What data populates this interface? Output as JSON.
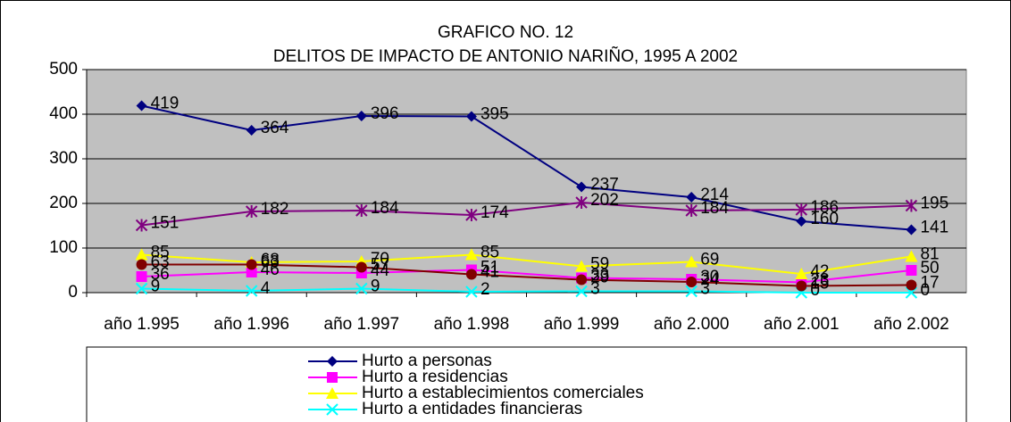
{
  "chart_data": {
    "type": "line",
    "title": "GRAFICO NO. 12",
    "subtitle": "DELITOS DE IMPACTO DE ANTONIO NARIÑO, 1995 A 2002",
    "categories": [
      "año 1.995",
      "año 1.996",
      "año 1.997",
      "año 1.998",
      "año 1.999",
      "año 2.000",
      "año 2.001",
      "año 2.002"
    ],
    "ylim": [
      0,
      500
    ],
    "yticks": [
      0,
      100,
      200,
      300,
      400,
      500
    ],
    "grid": true,
    "series": [
      {
        "name": "Hurto a personas",
        "color": "#000080",
        "marker": "diamond",
        "values": [
          419,
          364,
          396,
          395,
          237,
          214,
          160,
          141
        ]
      },
      {
        "name": "Hurto a residencias",
        "color": "#ff00ff",
        "marker": "square",
        "values": [
          36,
          46,
          44,
          51,
          33,
          30,
          23,
          50
        ]
      },
      {
        "name": "Hurto a establecimientos comerciales",
        "color": "#ffff00",
        "marker": "triangle",
        "values": [
          85,
          68,
          70,
          85,
          59,
          69,
          42,
          81
        ]
      },
      {
        "name": "Hurto a entidades financieras",
        "color": "#00ffff",
        "marker": "x",
        "values": [
          9,
          4,
          9,
          2,
          3,
          3,
          0,
          0
        ]
      },
      {
        "color": "#800080",
        "marker": "asterisk",
        "values": [
          151,
          182,
          184,
          174,
          202,
          184,
          186,
          195
        ]
      },
      {
        "color": "#800000",
        "marker": "circle",
        "values": [
          63,
          63,
          57,
          41,
          29,
          24,
          15,
          17
        ]
      }
    ]
  }
}
